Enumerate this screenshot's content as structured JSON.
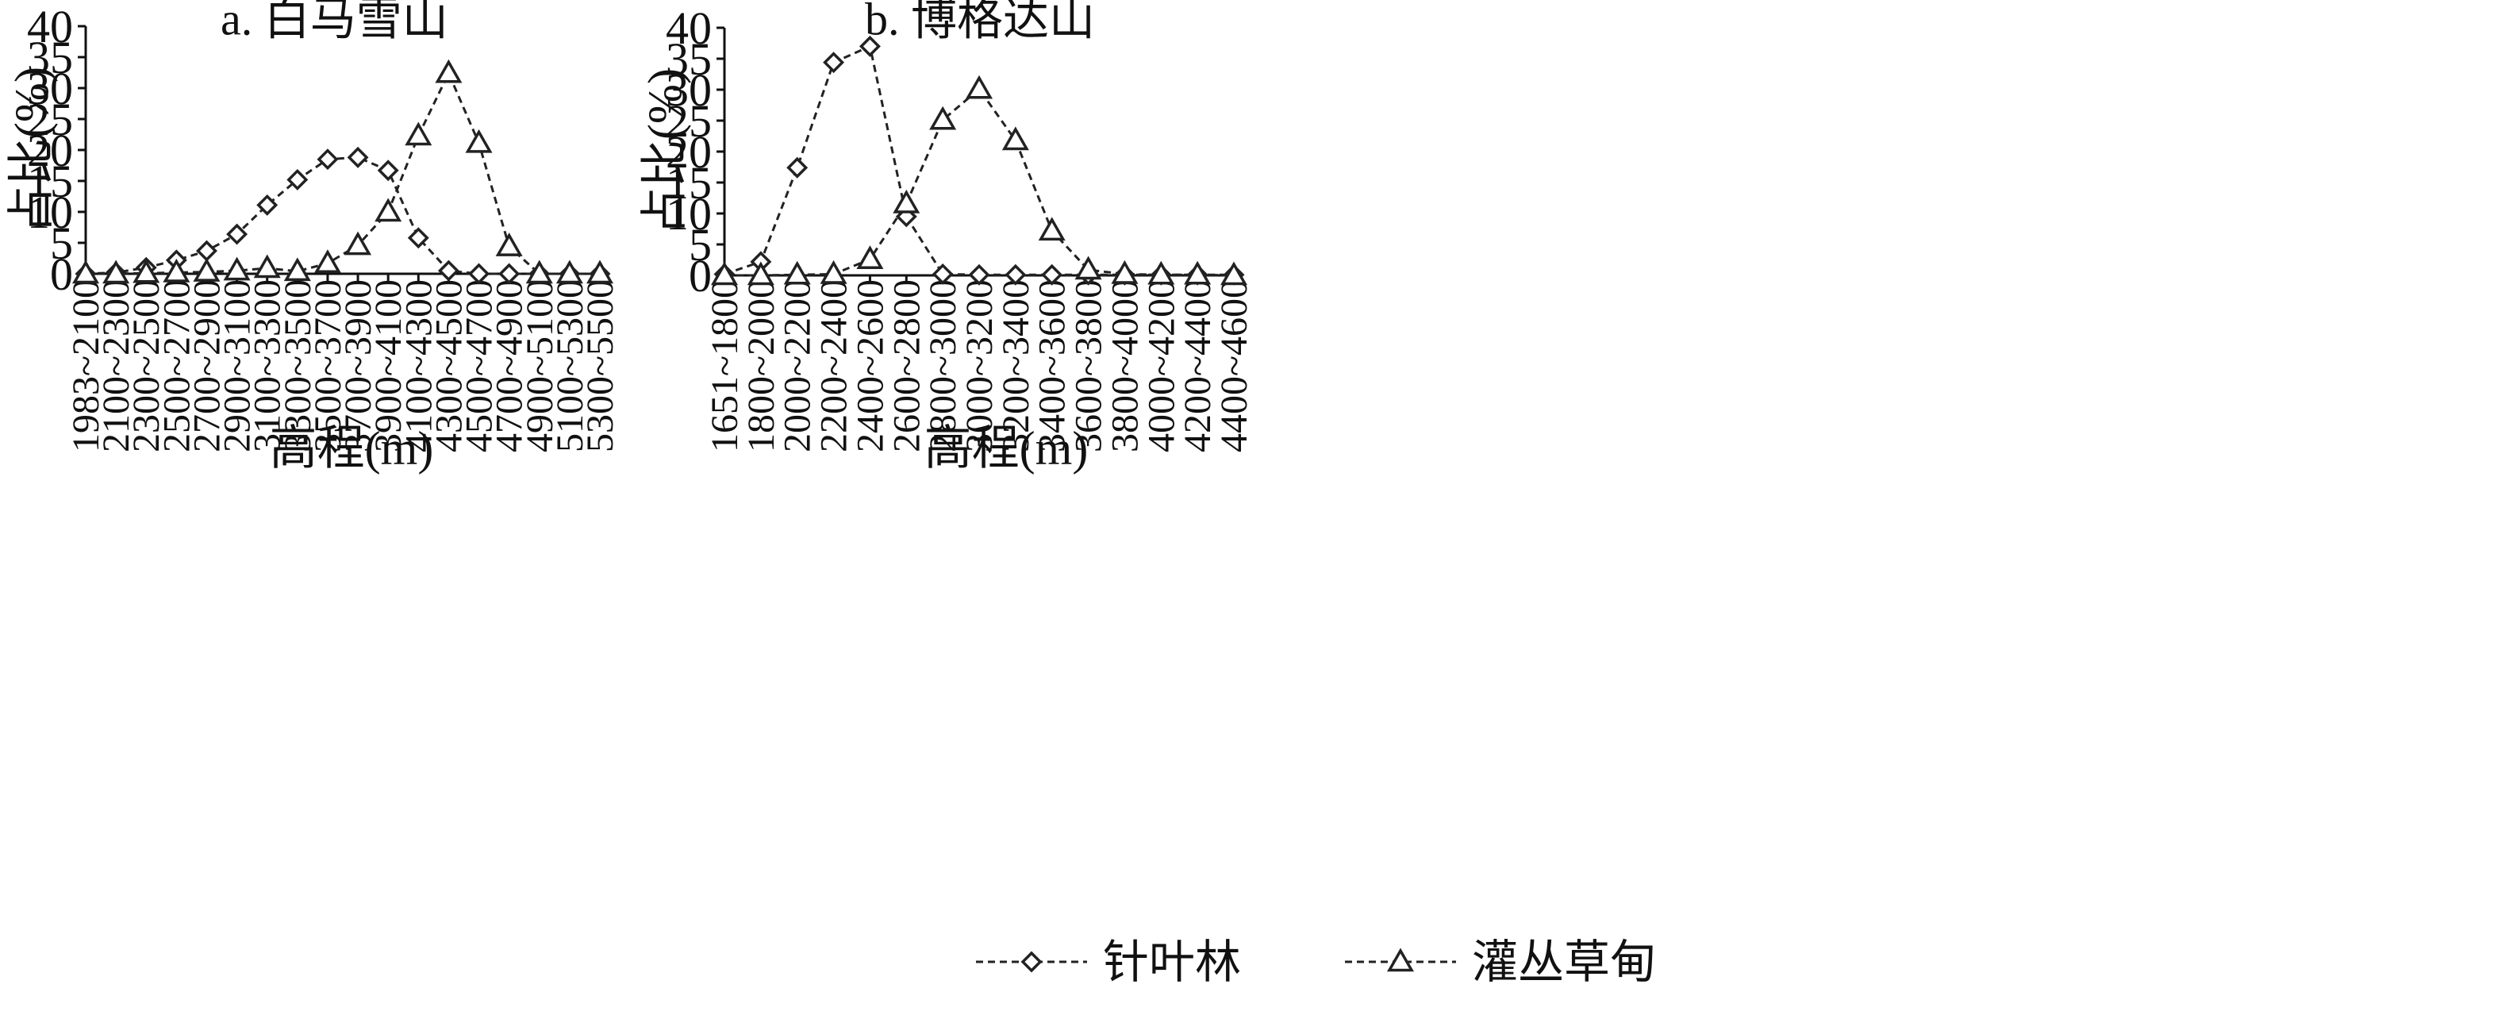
{
  "chart_data": [
    {
      "type": "line",
      "title": "a. 白马雪山",
      "xlabel": "高程(m)",
      "ylabel": "占比(%)",
      "ylim": [
        0,
        40
      ],
      "yticks": [
        "0",
        "5",
        "10",
        "15",
        "20",
        "25",
        "30",
        "35",
        "40"
      ],
      "grid": false,
      "categories": [
        "1983~2100",
        "2100~2300",
        "2300~2500",
        "2500~2700",
        "2700~2900",
        "2900~3100",
        "3100~3300",
        "3300~3500",
        "3500~3700",
        "3700~3900",
        "3900~4100",
        "4100~4300",
        "4300~4500",
        "4500~4700",
        "4700~4900",
        "4900~5100",
        "5100~5300",
        "5300~5500"
      ],
      "series": [
        {
          "name": "针叶林",
          "marker": "diamond",
          "values": [
            0,
            0.2,
            1.0,
            2.2,
            3.7,
            6.4,
            11.1,
            15.2,
            18.5,
            18.8,
            16.7,
            5.8,
            0.5,
            0,
            0,
            0,
            0,
            0
          ]
        },
        {
          "name": "灌丛草甸",
          "marker": "triangle",
          "values": [
            0,
            0,
            0.1,
            0.2,
            0.3,
            0.5,
            0.9,
            0.4,
            1.7,
            4.6,
            10.0,
            22.3,
            32.4,
            21.1,
            4.4,
            0,
            0,
            0
          ]
        }
      ]
    },
    {
      "type": "line",
      "title": "b. 博格达山",
      "xlabel": "高程(m)",
      "ylabel": "占比(%)",
      "ylim": [
        0,
        40
      ],
      "yticks": [
        "0",
        "5",
        "10",
        "15",
        "20",
        "25",
        "30",
        "35",
        "40"
      ],
      "grid": false,
      "categories": [
        "1651~1800",
        "1800~2000",
        "2000~2200",
        "2200~2400",
        "2400~2600",
        "2600~2800",
        "2800~3000",
        "3000~3200",
        "3200~3400",
        "3400~3600",
        "3600~3800",
        "3800~4000",
        "4000~4200",
        "4200~4400",
        "4400~4600"
      ],
      "series": [
        {
          "name": "针叶林",
          "marker": "diamond",
          "values": [
            0.2,
            2.2,
            17.4,
            34.4,
            37.0,
            9.5,
            0.2,
            0.1,
            0.1,
            0.1,
            0.1,
            0.1,
            0.1,
            0.1,
            0.1
          ]
        },
        {
          "name": "灌丛草甸",
          "marker": "triangle",
          "values": [
            0,
            0,
            0.1,
            0.2,
            2.6,
            11.6,
            25.1,
            30.1,
            21.8,
            7.2,
            0.9,
            0.2,
            0.1,
            0.1,
            0
          ]
        }
      ]
    }
  ],
  "legend": {
    "placement": "bottom-center",
    "entries": [
      {
        "label": "针叶林",
        "marker": "diamond"
      },
      {
        "label": "灌丛草甸",
        "marker": "triangle"
      }
    ]
  },
  "colors": {
    "line": "#222222",
    "marker_fill": "#ffffff",
    "axis": "#111111"
  }
}
